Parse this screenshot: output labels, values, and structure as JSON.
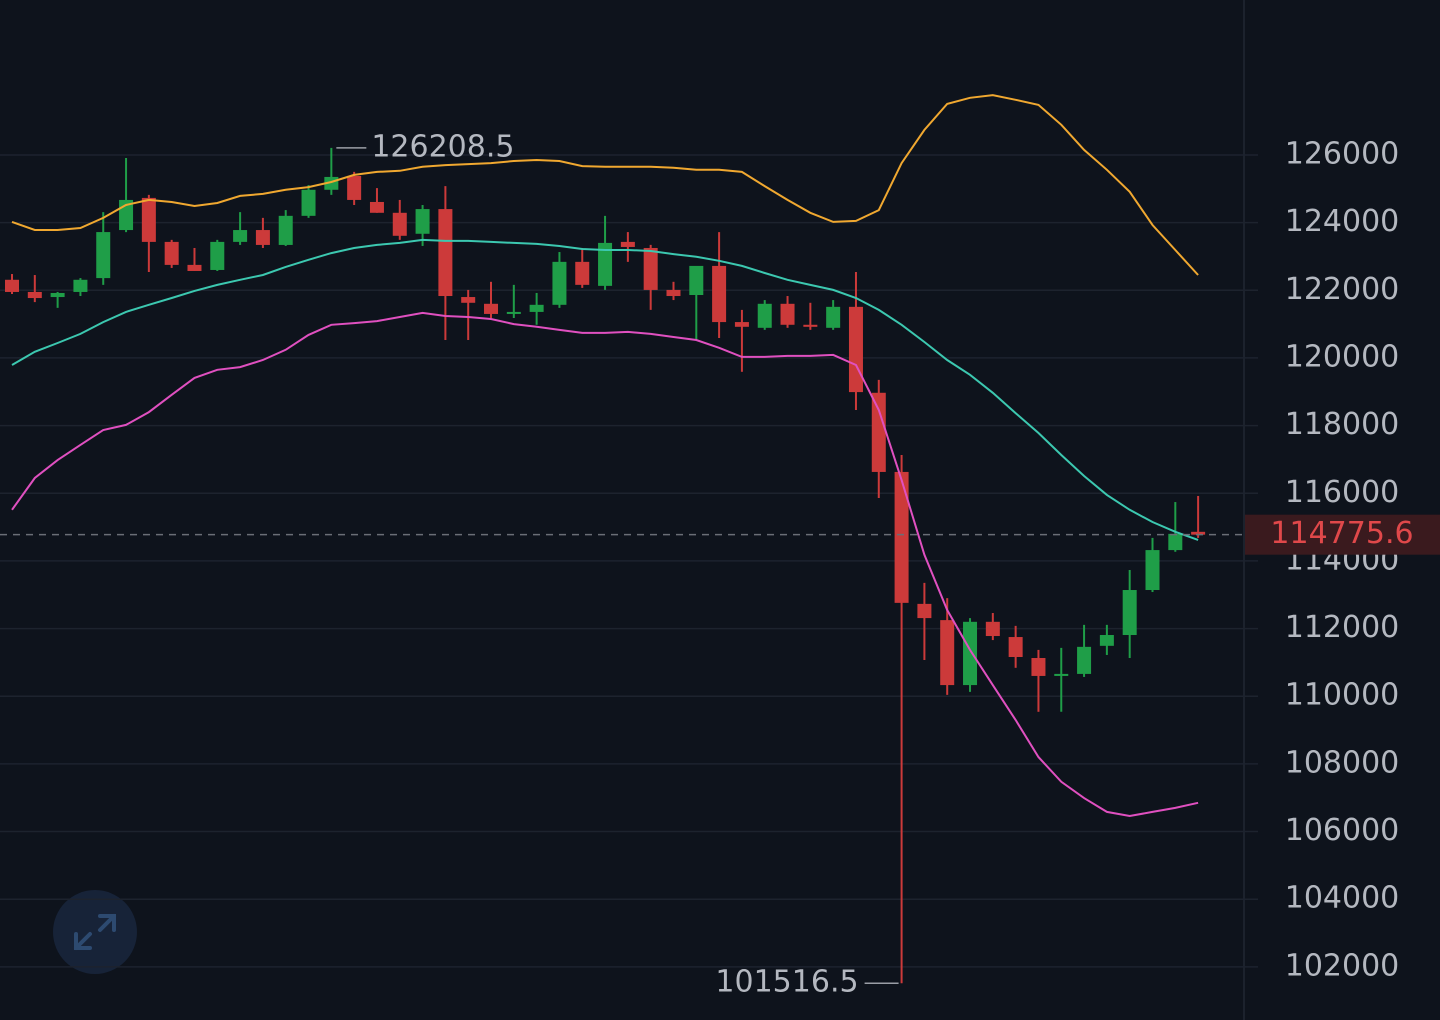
{
  "chart_data": {
    "type": "candlestick",
    "ylim": [
      100430,
      130580
    ],
    "yticks": [
      102000,
      104000,
      106000,
      108000,
      110000,
      112000,
      114000,
      116000,
      118000,
      120000,
      122000,
      124000,
      126000
    ],
    "grid": true,
    "up_color": "#1f9e48",
    "down_color": "#cc3a3a",
    "candles": {
      "open": [
        122310,
        121950,
        121800,
        121950,
        122360,
        123780,
        124730,
        123430,
        122750,
        122600,
        123430,
        123780,
        123340,
        124200,
        124970,
        125380,
        124610,
        124290,
        123670,
        124400,
        121800,
        121600,
        121300,
        121360,
        121570,
        122840,
        122130,
        123430,
        123250,
        122010,
        121860,
        122720,
        121060,
        120890,
        121600,
        120980,
        120890,
        121510,
        118970,
        116630,
        112730,
        112250,
        110330,
        112200,
        111750,
        111130,
        110600,
        110660,
        111490,
        111810,
        113140,
        114320,
        114860
      ],
      "close": [
        121950,
        121770,
        121920,
        122310,
        123720,
        124670,
        123430,
        122750,
        122570,
        123430,
        123780,
        123340,
        124200,
        124970,
        125350,
        124670,
        124290,
        123610,
        124400,
        121830,
        121630,
        121300,
        121360,
        121570,
        122840,
        122160,
        123400,
        123280,
        122010,
        121830,
        122720,
        121060,
        120920,
        121600,
        120980,
        120920,
        121510,
        118990,
        116630,
        112760,
        112310,
        110330,
        112200,
        111780,
        111160,
        110600,
        110660,
        111460,
        111810,
        113140,
        114320,
        114800,
        114775.6
      ],
      "high": [
        122480,
        122450,
        121950,
        122360,
        124310,
        125910,
        124820,
        123490,
        123250,
        123490,
        124310,
        124140,
        124370,
        125110,
        126208.5,
        125500,
        125020,
        124670,
        124520,
        125080,
        122010,
        122250,
        122160,
        121920,
        123130,
        123250,
        124200,
        123720,
        123340,
        122250,
        122360,
        123720,
        121420,
        121710,
        121830,
        121630,
        121710,
        122540,
        119350,
        117130,
        113350,
        112900,
        112310,
        112460,
        112080,
        111370,
        111430,
        112110,
        112110,
        113730,
        114680,
        115740,
        115920
      ],
      "low": [
        121890,
        121650,
        121480,
        121830,
        122160,
        123720,
        122540,
        122660,
        122570,
        122570,
        123340,
        123250,
        123310,
        124140,
        124820,
        124520,
        124290,
        123490,
        123310,
        120530,
        120530,
        121180,
        121180,
        120980,
        121480,
        122070,
        122010,
        122840,
        121420,
        121710,
        120530,
        120590,
        119590,
        120830,
        120890,
        120830,
        120830,
        118460,
        115860,
        101516.5,
        111070,
        110040,
        110130,
        111660,
        110840,
        109540,
        109540,
        110570,
        111220,
        111130,
        113080,
        114270,
        114680
      ]
    },
    "bands": [
      {
        "color": "#f0a830",
        "values": [
          124020,
          123780,
          123780,
          123840,
          124140,
          124520,
          124670,
          124610,
          124490,
          124580,
          124790,
          124850,
          124970,
          125050,
          125200,
          125410,
          125500,
          125530,
          125650,
          125700,
          125730,
          125760,
          125820,
          125850,
          125820,
          125670,
          125650,
          125650,
          125650,
          125620,
          125560,
          125560,
          125500,
          125080,
          124670,
          124290,
          124020,
          124050,
          124370,
          125760,
          126740,
          127510,
          127690,
          127770,
          127630,
          127480,
          126890,
          126150,
          125560,
          124910,
          123930,
          123190,
          122450
        ]
      },
      {
        "color": "#3cc8b0",
        "values": [
          119790,
          120180,
          120440,
          120710,
          121060,
          121360,
          121570,
          121770,
          121980,
          122160,
          122310,
          122450,
          122690,
          122900,
          123100,
          123250,
          123340,
          123400,
          123490,
          123460,
          123460,
          123430,
          123400,
          123370,
          123310,
          123220,
          123190,
          123190,
          123160,
          123070,
          122990,
          122870,
          122720,
          122510,
          122310,
          122160,
          122010,
          121770,
          121420,
          120980,
          120470,
          119940,
          119500,
          118970,
          118370,
          117780,
          117130,
          116510,
          115950,
          115510,
          115150,
          114860,
          114620
        ]
      },
      {
        "color": "#e050c0",
        "values": [
          115510,
          116450,
          116980,
          117430,
          117870,
          118020,
          118400,
          118910,
          119410,
          119650,
          119730,
          119940,
          120240,
          120680,
          120980,
          121030,
          121090,
          121210,
          121330,
          121240,
          121210,
          121150,
          121000,
          120920,
          120830,
          120740,
          120740,
          120770,
          120710,
          120620,
          120530,
          120300,
          120030,
          120030,
          120060,
          120060,
          120090,
          119790,
          118460,
          116390,
          114180,
          112550,
          111370,
          110330,
          109300,
          108200,
          107470,
          106990,
          106580,
          106460,
          106580,
          106700,
          106850
        ]
      }
    ]
  }
}
